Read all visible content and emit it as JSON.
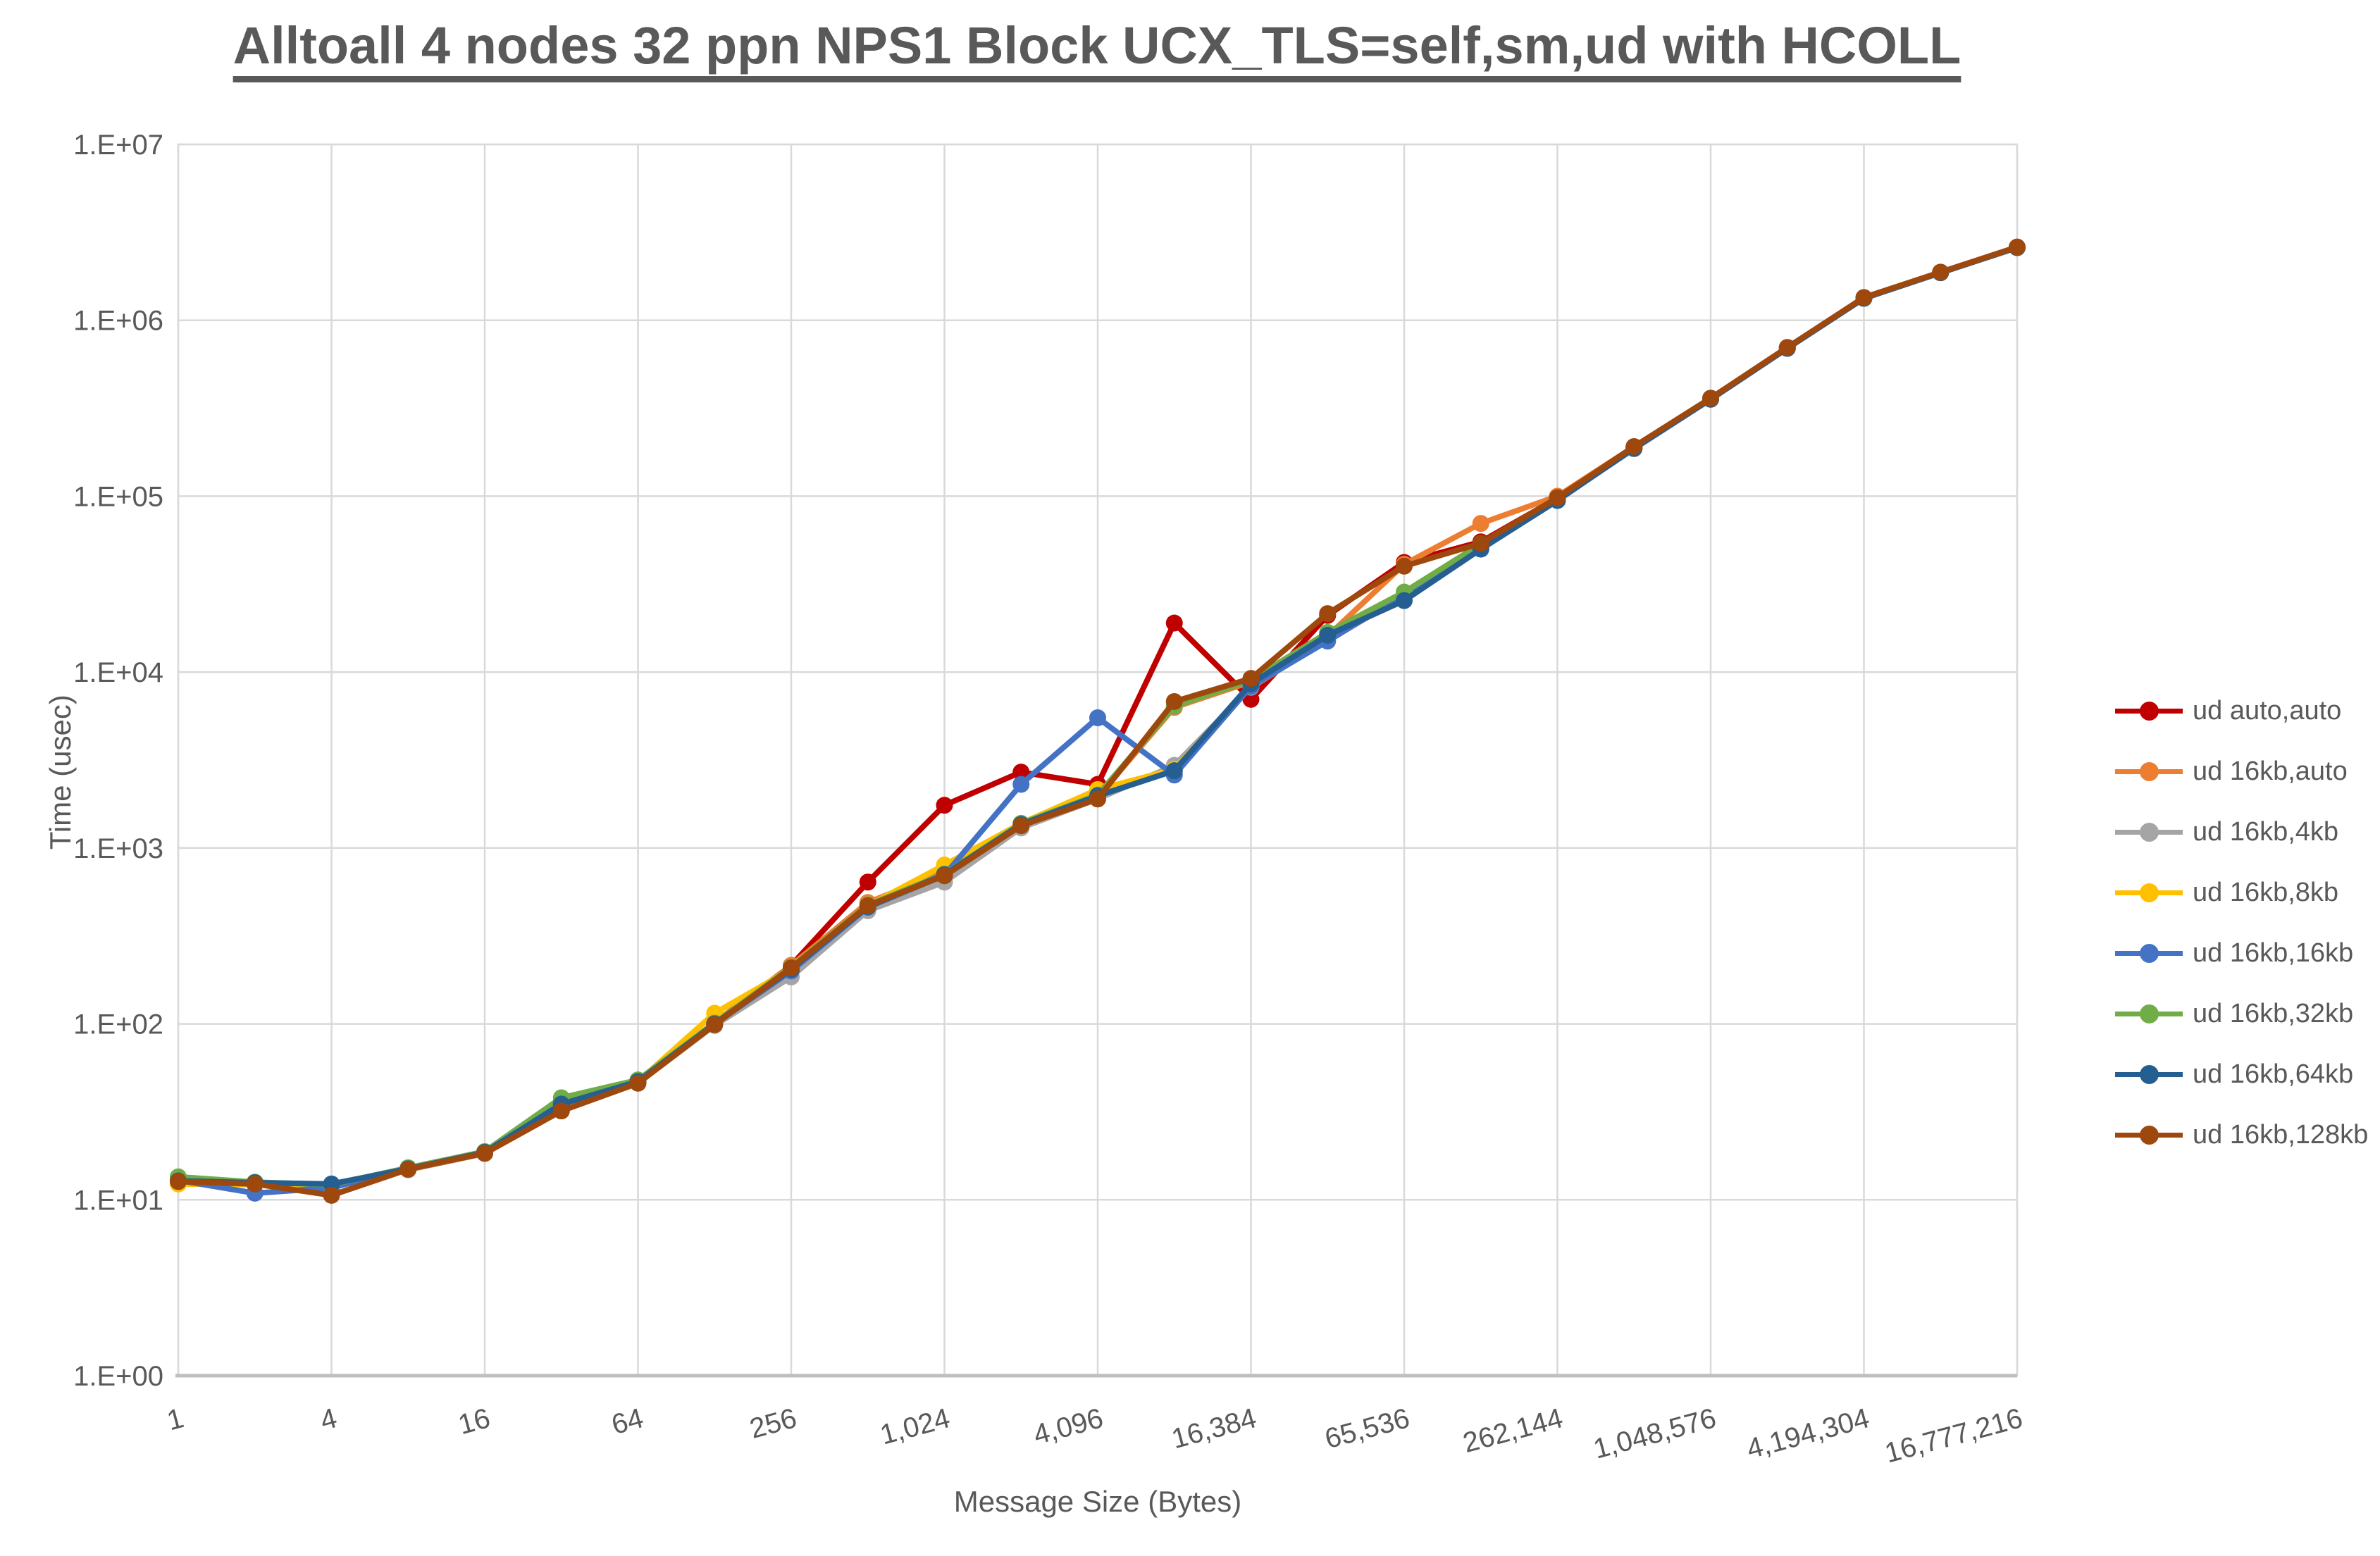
{
  "title": "Alltoall 4 nodes 32 ppn NPS1 Block UCX_TLS=self,sm,ud with HCOLL",
  "y_axis": {
    "title": "Time (usec)",
    "scale": "log10",
    "range": [
      1,
      10000000
    ],
    "tick_labels": [
      "1.E+00",
      "1.E+01",
      "1.E+02",
      "1.E+03",
      "1.E+04",
      "1.E+05",
      "1.E+06",
      "1.E+07"
    ]
  },
  "x_axis": {
    "title": "Message Size (Bytes)",
    "scale": "log2",
    "range": [
      1,
      16777216
    ],
    "tick_labels": [
      "1",
      "4",
      "16",
      "64",
      "256",
      "1,024",
      "4,096",
      "16,384",
      "65,536",
      "262,144",
      "1,048,576",
      "4,194,304",
      "16,777,216"
    ]
  },
  "styles": {
    "gridline_color": "#D9D9D9",
    "axis_line_color": "#BFBFBF",
    "text_color": "#595959",
    "background": "#FFFFFF"
  },
  "legend": {
    "position": "right"
  },
  "chart_data": {
    "type": "line",
    "x_label": "Message Size (Bytes)",
    "y_label": "Time (usec)",
    "x": [
      1,
      2,
      4,
      8,
      16,
      32,
      64,
      128,
      256,
      512,
      1024,
      2048,
      4096,
      8192,
      16384,
      32768,
      65536,
      131072,
      262144,
      524288,
      1048576,
      2097152,
      4194304,
      8388608,
      16777216
    ],
    "grid": true,
    "legend_position": "right",
    "series": [
      {
        "name": "ud auto,auto",
        "color": "#C00000",
        "values": [
          12.6,
          12.4,
          12.0,
          15.0,
          18.5,
          33,
          47,
          100,
          215,
          640,
          1750,
          2700,
          2300,
          19000,
          7000,
          21000,
          42000,
          55000,
          97500,
          190000,
          359000,
          698000,
          1342000,
          1872000,
          2602000
        ]
      },
      {
        "name": "ud 16kb,auto",
        "color": "#ED7D31",
        "values": [
          12.8,
          12.4,
          12.1,
          15.0,
          18.5,
          33,
          47,
          102,
          215,
          490,
          730,
          1350,
          1950,
          6300,
          8800,
          16000,
          41000,
          70000,
          100000,
          191000,
          360000,
          700000,
          1345000,
          1875000,
          2605000
        ]
      },
      {
        "name": "ud 16kb,4kb",
        "color": "#A5A5A5",
        "values": [
          12.7,
          12.3,
          12.0,
          14.8,
          18.3,
          32,
          46,
          98,
          185,
          440,
          640,
          1300,
          1900,
          2950,
          8200,
          15200,
          27000,
          52000,
          95000,
          186000,
          355000,
          692000,
          1332000,
          1862000,
          2588000
        ]
      },
      {
        "name": "ud 16kb,8kb",
        "color": "#FFC000",
        "values": [
          12.3,
          12.2,
          11.9,
          14.9,
          18.4,
          32,
          47,
          115,
          205,
          470,
          800,
          1380,
          2150,
          2800,
          8400,
          16500,
          28000,
          53000,
          96000,
          188000,
          357000,
          695000,
          1336000,
          1866000,
          2592000
        ]
      },
      {
        "name": "ud 16kb,16kb",
        "color": "#4472C4",
        "values": [
          12.9,
          10.9,
          11.7,
          15.1,
          18.6,
          36,
          47,
          100,
          200,
          460,
          700,
          2300,
          5500,
          2600,
          8300,
          15000,
          27500,
          51000,
          95500,
          187000,
          356000,
          693000,
          1334000,
          1864000,
          2590000
        ]
      },
      {
        "name": "ud 16kb,32kb",
        "color": "#70AD47",
        "values": [
          13.5,
          12.6,
          12.2,
          15.2,
          18.8,
          38,
          48,
          101,
          210,
          475,
          710,
          1380,
          2000,
          6400,
          9000,
          16800,
          28500,
          53500,
          96500,
          189000,
          358000,
          696000,
          1338000,
          1868000,
          2595000
        ]
      },
      {
        "name": "ud 16kb,64kb",
        "color": "#255E91",
        "values": [
          12.8,
          12.5,
          12.3,
          15.0,
          18.6,
          35,
          47,
          100,
          205,
          465,
          705,
          1360,
          1980,
          2750,
          8600,
          16200,
          25500,
          50000,
          94500,
          187500,
          356500,
          694000,
          1335000,
          1865000,
          2591000
        ]
      },
      {
        "name": "ud 16kb,128kb",
        "color": "#9E480E",
        "values": [
          12.7,
          12.3,
          10.6,
          14.9,
          18.4,
          32,
          46,
          99,
          208,
          470,
          695,
          1340,
          1900,
          6800,
          9200,
          21500,
          40000,
          54000,
          98000,
          191500,
          361000,
          701000,
          1348000,
          1878000,
          2610000
        ]
      }
    ]
  }
}
